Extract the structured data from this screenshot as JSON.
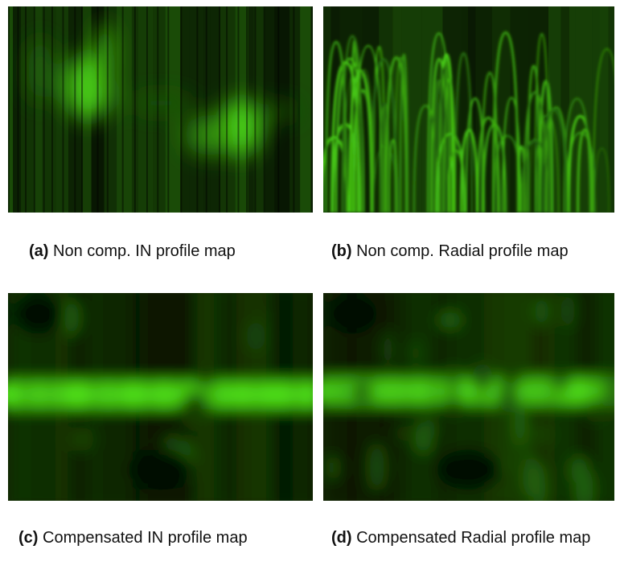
{
  "panels": [
    {
      "label": "(a)",
      "caption": "Non comp. IN profile map"
    },
    {
      "label": "(b)",
      "caption": "Non comp. Radial profile map"
    },
    {
      "label": "(c)",
      "caption": "Compensated IN profile map"
    },
    {
      "label": "(d)",
      "caption": "Compensated Radial profile map"
    }
  ]
}
